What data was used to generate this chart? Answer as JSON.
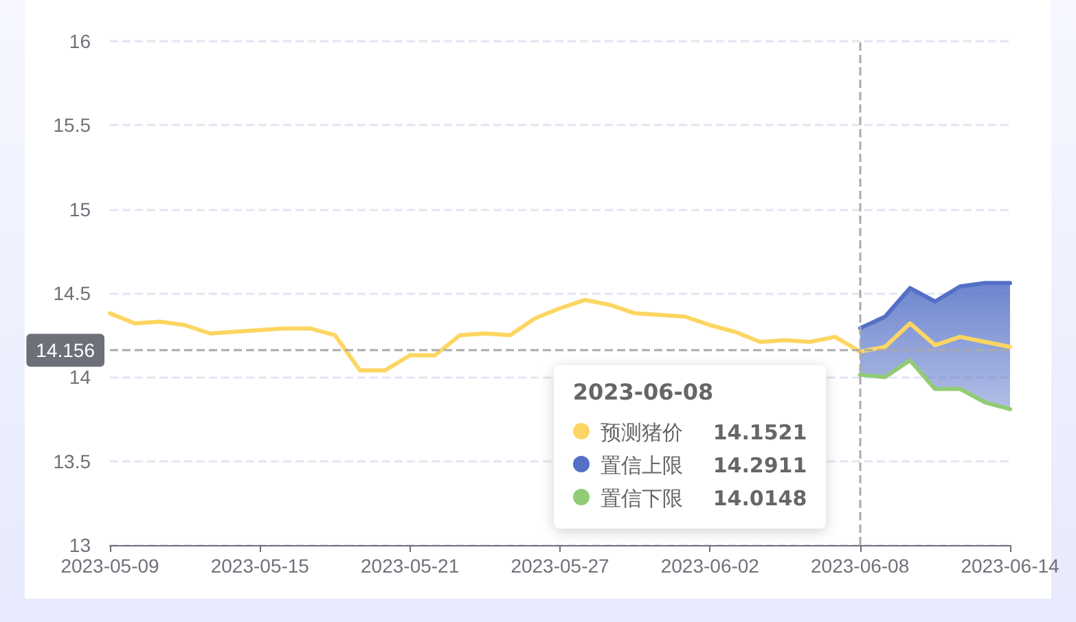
{
  "chart_data": {
    "type": "line",
    "x": [
      "2023-05-09",
      "2023-05-10",
      "2023-05-11",
      "2023-05-12",
      "2023-05-13",
      "2023-05-14",
      "2023-05-15",
      "2023-05-16",
      "2023-05-17",
      "2023-05-18",
      "2023-05-19",
      "2023-05-20",
      "2023-05-21",
      "2023-05-22",
      "2023-05-23",
      "2023-05-24",
      "2023-05-25",
      "2023-05-26",
      "2023-05-27",
      "2023-05-28",
      "2023-05-29",
      "2023-05-30",
      "2023-05-31",
      "2023-06-01",
      "2023-06-02",
      "2023-06-03",
      "2023-06-04",
      "2023-06-05",
      "2023-06-06",
      "2023-06-07",
      "2023-06-08",
      "2023-06-09",
      "2023-06-10",
      "2023-06-11",
      "2023-06-12",
      "2023-06-13",
      "2023-06-14"
    ],
    "series": [
      {
        "name": "预测猪价",
        "color": "#fcd662",
        "values": [
          14.38,
          14.32,
          14.33,
          14.31,
          14.26,
          14.27,
          14.28,
          14.29,
          14.29,
          14.25,
          14.04,
          14.04,
          14.13,
          14.13,
          14.25,
          14.26,
          14.25,
          14.35,
          14.41,
          14.46,
          14.43,
          14.38,
          14.37,
          14.36,
          14.31,
          14.27,
          14.21,
          14.22,
          14.21,
          14.24,
          14.1521,
          14.18,
          14.32,
          14.19,
          14.24,
          14.21,
          14.18
        ]
      },
      {
        "name": "置信上限",
        "type": "area",
        "color": "#5470c6",
        "x": [
          "2023-06-08",
          "2023-06-09",
          "2023-06-10",
          "2023-06-11",
          "2023-06-12",
          "2023-06-13",
          "2023-06-14"
        ],
        "values": [
          14.2911,
          14.36,
          14.53,
          14.45,
          14.54,
          14.56,
          14.56
        ]
      },
      {
        "name": "置信下限",
        "color": "#91cc75",
        "x": [
          "2023-06-08",
          "2023-06-09",
          "2023-06-10",
          "2023-06-11",
          "2023-06-12",
          "2023-06-13",
          "2023-06-14"
        ],
        "values": [
          14.0148,
          14.0,
          14.1,
          13.93,
          13.93,
          13.85,
          13.81
        ]
      }
    ],
    "xlim": [
      "2023-05-09",
      "2023-06-14"
    ],
    "xticks": [
      "2023-05-09",
      "2023-05-15",
      "2023-05-21",
      "2023-05-27",
      "2023-06-02",
      "2023-06-08",
      "2023-06-14"
    ],
    "ylim": [
      13,
      16
    ],
    "yticks": [
      13,
      13.5,
      14,
      14.5,
      15,
      15.5,
      16
    ],
    "grid": "y",
    "marker": "none",
    "line_style": "solid",
    "legend": "bottom",
    "legend_title": "2023-06-08",
    "annotations": [
      "14.1521",
      "14.2911",
      "14.0148"
    ],
    "ref_lines": [
      {
        "axis": "y",
        "value": 14.156,
        "label": "14.156",
        "line_style": "dashed"
      },
      {
        "axis": "x",
        "value": "2023-06-08",
        "line_style": "dashed"
      }
    ]
  }
}
